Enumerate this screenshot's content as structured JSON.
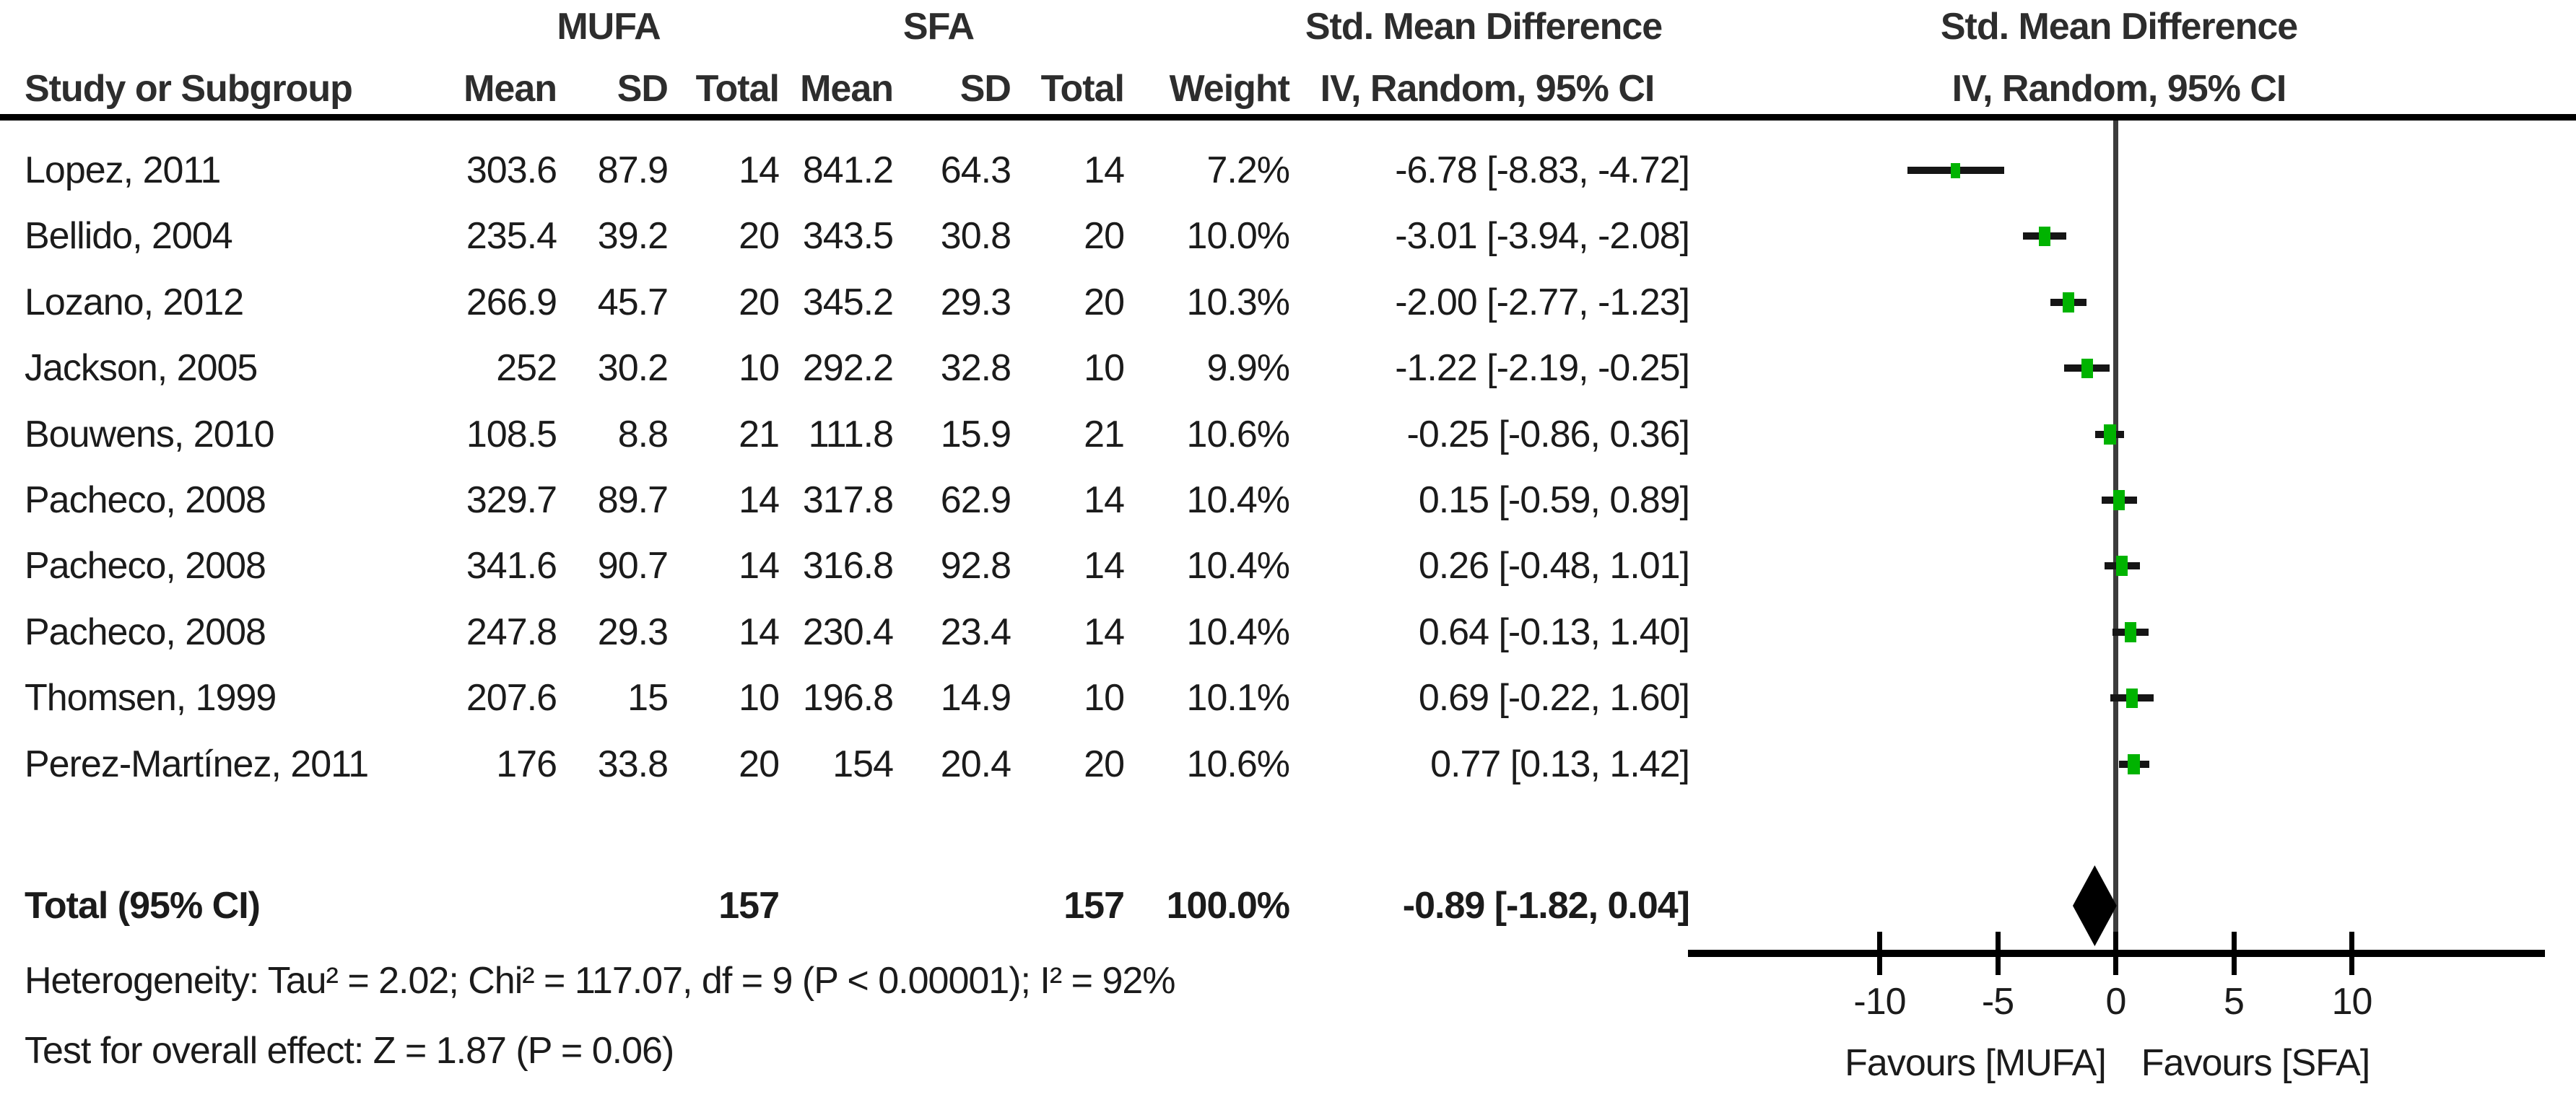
{
  "header": {
    "group_mufa": "MUFA",
    "group_sfa": "SFA",
    "smd_left": "Std. Mean Difference",
    "smd_right": "Std. Mean Difference",
    "col_study": "Study or Subgroup",
    "col_mean": "Mean",
    "col_sd": "SD",
    "col_total": "Total",
    "col_weight": "Weight",
    "col_ci_left": "IV, Random, 95% CI",
    "col_ci_right": "IV, Random, 95% CI"
  },
  "footer": {
    "heterogeneity": "Heterogeneity: Tau² = 2.02; Chi² = 117.07, df = 9 (P < 0.00001); I² = 92%",
    "overall_effect": "Test for overall effect: Z = 1.87 (P = 0.06)"
  },
  "colors": {
    "marker_green": "#00b300",
    "diamond_black": "#000000",
    "ci_line": "#151515",
    "zero_line": "#3c3c3c"
  },
  "chart_data": {
    "type": "forest",
    "effect_measure": "Std. Mean Difference",
    "method": "IV, Random, 95% CI",
    "axis": {
      "ticks": [
        -10,
        -5,
        0,
        5,
        10
      ],
      "range": [
        -18,
        18
      ],
      "favours_left": "Favours [MUFA]",
      "favours_right": "Favours [SFA]"
    },
    "studies": [
      {
        "name": "Lopez, 2011",
        "mufa_mean": "303.6",
        "mufa_sd": "87.9",
        "mufa_total": "14",
        "sfa_mean": "841.2",
        "sfa_sd": "64.3",
        "sfa_total": "14",
        "weight_label": "7.2%",
        "weight_pct": 7.2,
        "smd_ci_label": "-6.78 [-8.83, -4.72]",
        "est": -6.78,
        "ci_lower": -8.83,
        "ci_upper": -4.72
      },
      {
        "name": "Bellido, 2004",
        "mufa_mean": "235.4",
        "mufa_sd": "39.2",
        "mufa_total": "20",
        "sfa_mean": "343.5",
        "sfa_sd": "30.8",
        "sfa_total": "20",
        "weight_label": "10.0%",
        "weight_pct": 10.0,
        "smd_ci_label": "-3.01 [-3.94, -2.08]",
        "est": -3.01,
        "ci_lower": -3.94,
        "ci_upper": -2.08
      },
      {
        "name": "Lozano, 2012",
        "mufa_mean": "266.9",
        "mufa_sd": "45.7",
        "mufa_total": "20",
        "sfa_mean": "345.2",
        "sfa_sd": "29.3",
        "sfa_total": "20",
        "weight_label": "10.3%",
        "weight_pct": 10.3,
        "smd_ci_label": "-2.00 [-2.77, -1.23]",
        "est": -2.0,
        "ci_lower": -2.77,
        "ci_upper": -1.23
      },
      {
        "name": "Jackson, 2005",
        "mufa_mean": "252",
        "mufa_sd": "30.2",
        "mufa_total": "10",
        "sfa_mean": "292.2",
        "sfa_sd": "32.8",
        "sfa_total": "10",
        "weight_label": "9.9%",
        "weight_pct": 9.9,
        "smd_ci_label": "-1.22 [-2.19, -0.25]",
        "est": -1.22,
        "ci_lower": -2.19,
        "ci_upper": -0.25
      },
      {
        "name": "Bouwens, 2010",
        "mufa_mean": "108.5",
        "mufa_sd": "8.8",
        "mufa_total": "21",
        "sfa_mean": "111.8",
        "sfa_sd": "15.9",
        "sfa_total": "21",
        "weight_label": "10.6%",
        "weight_pct": 10.6,
        "smd_ci_label": "-0.25 [-0.86, 0.36]",
        "est": -0.25,
        "ci_lower": -0.86,
        "ci_upper": 0.36
      },
      {
        "name": "Pacheco, 2008",
        "mufa_mean": "329.7",
        "mufa_sd": "89.7",
        "mufa_total": "14",
        "sfa_mean": "317.8",
        "sfa_sd": "62.9",
        "sfa_total": "14",
        "weight_label": "10.4%",
        "weight_pct": 10.4,
        "smd_ci_label": "0.15 [-0.59, 0.89]",
        "est": 0.15,
        "ci_lower": -0.59,
        "ci_upper": 0.89
      },
      {
        "name": "Pacheco, 2008",
        "mufa_mean": "341.6",
        "mufa_sd": "90.7",
        "mufa_total": "14",
        "sfa_mean": "316.8",
        "sfa_sd": "92.8",
        "sfa_total": "14",
        "weight_label": "10.4%",
        "weight_pct": 10.4,
        "smd_ci_label": "0.26 [-0.48, 1.01]",
        "est": 0.26,
        "ci_lower": -0.48,
        "ci_upper": 1.01
      },
      {
        "name": "Pacheco, 2008",
        "mufa_mean": "247.8",
        "mufa_sd": "29.3",
        "mufa_total": "14",
        "sfa_mean": "230.4",
        "sfa_sd": "23.4",
        "sfa_total": "14",
        "weight_label": "10.4%",
        "weight_pct": 10.4,
        "smd_ci_label": "0.64 [-0.13, 1.40]",
        "est": 0.64,
        "ci_lower": -0.13,
        "ci_upper": 1.4
      },
      {
        "name": "Thomsen, 1999",
        "mufa_mean": "207.6",
        "mufa_sd": "15",
        "mufa_total": "10",
        "sfa_mean": "196.8",
        "sfa_sd": "14.9",
        "sfa_total": "10",
        "weight_label": "10.1%",
        "weight_pct": 10.1,
        "smd_ci_label": "0.69 [-0.22, 1.60]",
        "est": 0.69,
        "ci_lower": -0.22,
        "ci_upper": 1.6
      },
      {
        "name": "Perez-Martínez, 2011",
        "mufa_mean": "176",
        "mufa_sd": "33.8",
        "mufa_total": "20",
        "sfa_mean": "154",
        "sfa_sd": "20.4",
        "sfa_total": "20",
        "weight_label": "10.6%",
        "weight_pct": 10.6,
        "smd_ci_label": "0.77 [0.13, 1.42]",
        "est": 0.77,
        "ci_lower": 0.13,
        "ci_upper": 1.42
      }
    ],
    "total": {
      "label": "Total (95% CI)",
      "mufa_total": "157",
      "sfa_total": "157",
      "weight_label": "100.0%",
      "smd_ci_label": "-0.89 [-1.82, 0.04]",
      "est": -0.89,
      "ci_lower": -1.82,
      "ci_upper": 0.04
    }
  }
}
